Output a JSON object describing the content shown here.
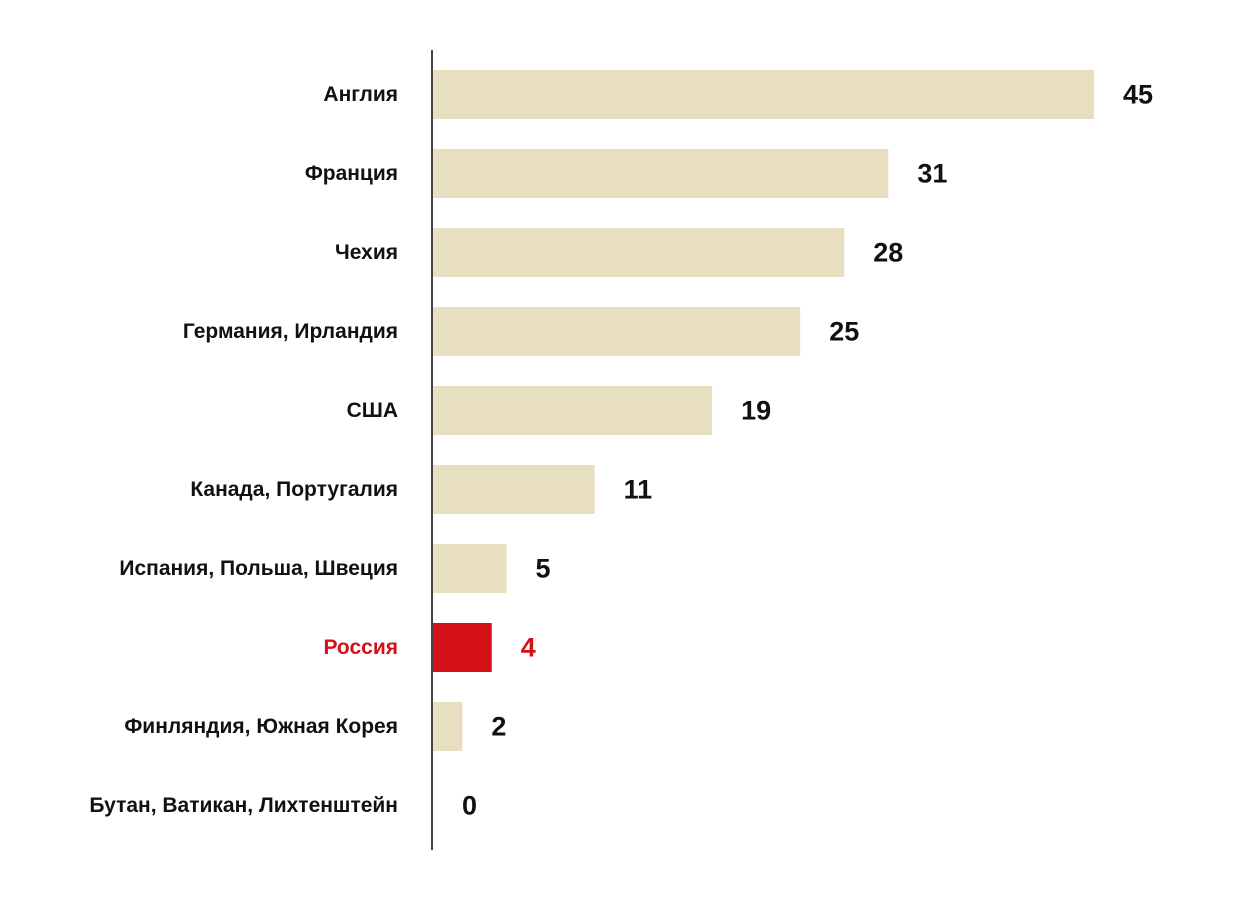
{
  "chart_data": {
    "type": "bar",
    "orientation": "horizontal",
    "categories": [
      "Англия",
      "Франция",
      "Чехия",
      "Германия, Ирландия",
      "США",
      "Канада, Португалия",
      "Испания, Польша, Швеция",
      "Россия",
      "Финляндия, Южная Корея",
      "Бутан, Ватикан, Лихтенштейн"
    ],
    "values": [
      45,
      31,
      28,
      25,
      19,
      11,
      5,
      4,
      2,
      0
    ],
    "highlight_index": 7,
    "colors": {
      "bar": "#e8dfc0",
      "highlight": "#d41118",
      "text": "#111111",
      "axis": "#444444"
    },
    "xlim": [
      0,
      45
    ],
    "grid": false,
    "legend": "none"
  }
}
